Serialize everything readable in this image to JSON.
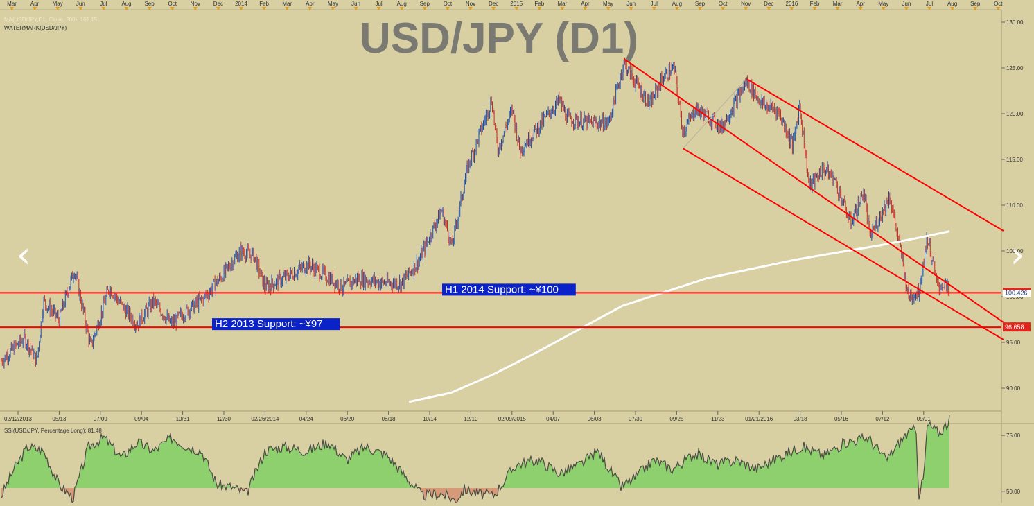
{
  "chart_title": "USD/JPY (D1)",
  "indicator_labels": {
    "moving_average": "MA(USD/JPY,D1, Close, 200): 107.15",
    "watermark": "WATERMARK(USD/JPY)",
    "ssi": "SSI(USD/JPY, Percentage Long): 81.48"
  },
  "nav": {
    "prev_glyph": "‹",
    "next_glyph": "›"
  },
  "colors": {
    "background": "#d8cfa3",
    "price_up": "#1e4fa8",
    "price_down": "#c0302a",
    "support_line": "#ff0000",
    "channel": "#ff0000",
    "ma_line": "#ffffff",
    "ssi_positive": "#8ecf6e",
    "ssi_negative": "#d69a78",
    "annotation_bg": "#0a22c8"
  },
  "chart_data": {
    "type": "line",
    "symbol": "USD/JPY",
    "timeframe": "D1",
    "grid": false,
    "ylim": [
      88.0,
      131.0
    ],
    "y_ticks": [
      "130.00",
      "125.00",
      "120.00",
      "115.00",
      "110.00",
      "105.00",
      "100.00",
      "95.00",
      "90.00"
    ],
    "top_months": [
      "Mar",
      "Apr",
      "May",
      "Jun",
      "Jul",
      "Aug",
      "Sep",
      "Oct",
      "Nov",
      "Dec",
      "2014",
      "Feb",
      "Mar",
      "Apr",
      "May",
      "Jun",
      "Jul",
      "Aug",
      "Sep",
      "Oct",
      "Nov",
      "Dec",
      "2015",
      "Feb",
      "Mar",
      "Apr",
      "May",
      "Jun",
      "Jul",
      "Aug",
      "Sep",
      "Oct",
      "Nov",
      "Dec",
      "2016",
      "Feb",
      "Mar",
      "Apr",
      "May",
      "Jun",
      "Jul",
      "Aug",
      "Sep",
      "Oct"
    ],
    "bottom_dates": [
      "02/12/2013",
      "05/13",
      "07/09",
      "09/04",
      "10/31",
      "12/30",
      "02/26/2014",
      "04/24",
      "06/20",
      "08/18",
      "10/14",
      "12/10",
      "02/09/2015",
      "04/07",
      "06/03",
      "07/30",
      "09/25",
      "11/23",
      "01/21/2016",
      "03/18",
      "05/16",
      "07/12",
      "09/01"
    ],
    "price_series": {
      "name": "USD/JPY",
      "points": [
        [
          "2013-02-12",
          93.0
        ],
        [
          "2013-03-15",
          95.5
        ],
        [
          "2013-04-01",
          93.0
        ],
        [
          "2013-04-10",
          99.5
        ],
        [
          "2013-05-01",
          97.5
        ],
        [
          "2013-05-22",
          103.0
        ],
        [
          "2013-06-13",
          94.5
        ],
        [
          "2013-07-08",
          101.0
        ],
        [
          "2013-07-25",
          99.0
        ],
        [
          "2013-08-15",
          97.0
        ],
        [
          "2013-09-06",
          99.5
        ],
        [
          "2013-09-30",
          97.0
        ],
        [
          "2013-10-22",
          98.5
        ],
        [
          "2013-11-15",
          100.0
        ],
        [
          "2013-12-10",
          102.5
        ],
        [
          "2014-01-02",
          105.0
        ],
        [
          "2014-01-20",
          104.5
        ],
        [
          "2014-02-04",
          101.0
        ],
        [
          "2014-03-01",
          102.0
        ],
        [
          "2014-04-04",
          103.5
        ],
        [
          "2014-05-21",
          101.0
        ],
        [
          "2014-06-10",
          102.0
        ],
        [
          "2014-07-15",
          101.5
        ],
        [
          "2014-08-08",
          101.5
        ],
        [
          "2014-09-01",
          104.0
        ],
        [
          "2014-10-01",
          109.5
        ],
        [
          "2014-10-15",
          105.5
        ],
        [
          "2014-11-05",
          114.0
        ],
        [
          "2014-12-08",
          121.5
        ],
        [
          "2014-12-16",
          116.0
        ],
        [
          "2015-01-05",
          120.5
        ],
        [
          "2015-01-15",
          116.0
        ],
        [
          "2015-03-10",
          121.5
        ],
        [
          "2015-03-20",
          119.5
        ],
        [
          "2015-04-20",
          119.0
        ],
        [
          "2015-05-15",
          119.0
        ],
        [
          "2015-06-05",
          125.5
        ],
        [
          "2015-06-24",
          123.0
        ],
        [
          "2015-07-10",
          121.0
        ],
        [
          "2015-07-28",
          124.0
        ],
        [
          "2015-08-12",
          125.0
        ],
        [
          "2015-08-24",
          118.0
        ],
        [
          "2015-09-10",
          120.5
        ],
        [
          "2015-09-30",
          119.5
        ],
        [
          "2015-10-15",
          118.5
        ],
        [
          "2015-11-18",
          123.5
        ],
        [
          "2015-12-10",
          121.0
        ],
        [
          "2015-12-31",
          120.3
        ],
        [
          "2016-01-20",
          116.5
        ],
        [
          "2016-01-29",
          121.0
        ],
        [
          "2016-02-11",
          112.0
        ],
        [
          "2016-03-01",
          114.0
        ],
        [
          "2016-03-15",
          113.0
        ],
        [
          "2016-04-07",
          108.0
        ],
        [
          "2016-04-25",
          111.5
        ],
        [
          "2016-05-03",
          106.5
        ],
        [
          "2016-05-30",
          111.0
        ],
        [
          "2016-06-16",
          104.0
        ],
        [
          "2016-06-24",
          100.0
        ],
        [
          "2016-07-08",
          100.5
        ],
        [
          "2016-07-20",
          106.5
        ],
        [
          "2016-08-03",
          101.0
        ],
        [
          "2016-08-12",
          101.5
        ],
        [
          "2016-08-19",
          100.2
        ]
      ]
    },
    "moving_average_200": {
      "name": "MA(USD/JPY,D1, Close, 200)",
      "points": [
        [
          "2014-08-18",
          88.5
        ],
        [
          "2014-10-14",
          89.5
        ],
        [
          "2014-12-10",
          91.5
        ],
        [
          "2015-02-09",
          94.0
        ],
        [
          "2015-04-07",
          96.5
        ],
        [
          "2015-06-03",
          99.0
        ],
        [
          "2015-07-30",
          100.5
        ],
        [
          "2015-09-25",
          102.0
        ],
        [
          "2015-11-23",
          103.0
        ],
        [
          "2016-01-21",
          104.0
        ],
        [
          "2016-03-18",
          104.8
        ],
        [
          "2016-05-16",
          105.6
        ],
        [
          "2016-07-12",
          106.5
        ],
        [
          "2016-08-19",
          107.15
        ]
      ]
    },
    "horizontal_levels": [
      {
        "value": 100.426,
        "label": "H1 2014 Support: ~¥100",
        "axis_label": "100.426"
      },
      {
        "value": 96.658,
        "label": "H2 2013 Support: ~¥97",
        "axis_label": "96.658"
      }
    ],
    "channels": [
      {
        "start": [
          "2015-06-05",
          126.0
        ],
        "end": [
          "2016-10-31",
          97.2
        ]
      },
      {
        "start": [
          "2015-08-24",
          116.2
        ],
        "end": [
          "2016-10-31",
          95.3
        ]
      },
      {
        "start": [
          "2015-11-18",
          123.8
        ],
        "end": [
          "2016-10-31",
          107.2
        ]
      }
    ],
    "ssi_panel": {
      "name": "SSI(USD/JPY, Percentage Long)",
      "ylim": [
        45,
        80
      ],
      "y_ticks": [
        "75.00",
        "50.00"
      ],
      "baseline": 51.5,
      "last_value": 81.48,
      "points": [
        [
          "2013-02-12",
          48
        ],
        [
          "2013-03-01",
          60
        ],
        [
          "2013-03-20",
          70
        ],
        [
          "2013-04-10",
          68
        ],
        [
          "2013-05-01",
          53
        ],
        [
          "2013-05-20",
          47
        ],
        [
          "2013-06-10",
          70
        ],
        [
          "2013-07-01",
          74
        ],
        [
          "2013-07-25",
          65
        ],
        [
          "2013-08-15",
          72
        ],
        [
          "2013-09-06",
          68
        ],
        [
          "2013-10-01",
          74
        ],
        [
          "2013-10-22",
          70
        ],
        [
          "2013-11-10",
          68
        ],
        [
          "2013-12-01",
          53
        ],
        [
          "2013-12-20",
          52
        ],
        [
          "2014-01-10",
          49
        ],
        [
          "2014-02-04",
          68
        ],
        [
          "2014-03-01",
          70
        ],
        [
          "2014-04-01",
          68
        ],
        [
          "2014-05-01",
          72
        ],
        [
          "2014-05-25",
          64
        ],
        [
          "2014-06-20",
          70
        ],
        [
          "2014-07-20",
          66
        ],
        [
          "2014-08-15",
          56
        ],
        [
          "2014-09-05",
          48
        ],
        [
          "2014-10-01",
          49
        ],
        [
          "2014-10-20",
          46
        ],
        [
          "2014-11-01",
          51
        ],
        [
          "2014-11-20",
          49
        ],
        [
          "2014-12-10",
          48
        ],
        [
          "2015-01-10",
          62
        ],
        [
          "2015-02-09",
          64
        ],
        [
          "2015-03-10",
          58
        ],
        [
          "2015-04-07",
          62
        ],
        [
          "2015-05-01",
          68
        ],
        [
          "2015-06-01",
          52
        ],
        [
          "2015-06-20",
          56
        ],
        [
          "2015-07-15",
          64
        ],
        [
          "2015-08-10",
          60
        ],
        [
          "2015-09-10",
          67
        ],
        [
          "2015-10-10",
          62
        ],
        [
          "2015-11-05",
          64
        ],
        [
          "2015-12-01",
          60
        ],
        [
          "2016-01-05",
          66
        ],
        [
          "2016-02-01",
          70
        ],
        [
          "2016-03-01",
          66
        ],
        [
          "2016-04-01",
          72
        ],
        [
          "2016-05-01",
          74
        ],
        [
          "2016-05-25",
          64
        ],
        [
          "2016-06-20",
          75
        ],
        [
          "2016-07-05",
          78
        ],
        [
          "2016-07-08",
          48
        ],
        [
          "2016-07-15",
          56
        ],
        [
          "2016-07-20",
          80
        ],
        [
          "2016-08-05",
          76
        ],
        [
          "2016-08-19",
          81.48
        ]
      ]
    }
  }
}
